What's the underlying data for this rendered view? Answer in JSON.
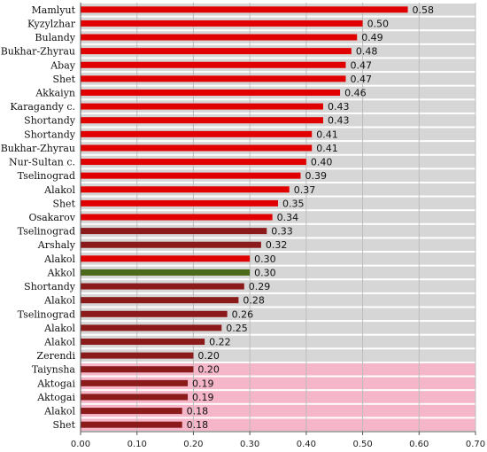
{
  "colors": {
    "background": "#ffffff",
    "band_gray": "#d6d6d6",
    "band_pink": "#f4b6c8",
    "bar_red": "#e00000",
    "bar_brown": "#8b1a1a",
    "bar_olive": "#4a6a1a",
    "grid": "#bdbdbd",
    "axis": "#555555",
    "text": "#111111"
  },
  "chart_data": {
    "type": "bar",
    "orientation": "horizontal",
    "categories": [
      "Mamlyut",
      "Kyzylzhar",
      "Bulandy",
      "Bukhar-Zhyrau",
      "Abay",
      "Shet",
      "Akkaiyn",
      "Karagandy c.",
      "Shortandy",
      "Shortandy",
      "Bukhar-Zhyrau",
      "Nur-Sultan c.",
      "Tselinograd",
      "Alakol",
      "Shet",
      "Osakarov",
      "Tselinograd",
      "Arshaly",
      "Alakol",
      "Akkol",
      "Shortandy",
      "Alakol",
      "Tselinograd",
      "Alakol",
      "Alakol",
      "Zerendi",
      "Taiynsha",
      "Aktogai",
      "Aktogai",
      "Alakol",
      "Shet"
    ],
    "values": [
      0.58,
      0.5,
      0.49,
      0.48,
      0.47,
      0.47,
      0.46,
      0.43,
      0.43,
      0.41,
      0.41,
      0.4,
      0.39,
      0.37,
      0.35,
      0.34,
      0.33,
      0.32,
      0.3,
      0.3,
      0.29,
      0.28,
      0.26,
      0.25,
      0.22,
      0.2,
      0.2,
      0.19,
      0.19,
      0.18,
      0.18
    ],
    "value_labels": [
      "0.58",
      "0.50",
      "0.49",
      "0.48",
      "0.47",
      "0.47",
      "0.46",
      "0.43",
      "0.43",
      "0.41",
      "0.41",
      "0.40",
      "0.39",
      "0.37",
      "0.35",
      "0.34",
      "0.33",
      "0.32",
      "0.30",
      "0.30",
      "0.29",
      "0.28",
      "0.26",
      "0.25",
      "0.22",
      "0.20",
      "0.20",
      "0.19",
      "0.19",
      "0.18",
      "0.18"
    ],
    "bar_color_keys": [
      "bar_red",
      "bar_red",
      "bar_red",
      "bar_red",
      "bar_red",
      "bar_red",
      "bar_red",
      "bar_red",
      "bar_red",
      "bar_red",
      "bar_red",
      "bar_red",
      "bar_red",
      "bar_red",
      "bar_red",
      "bar_red",
      "bar_brown",
      "bar_brown",
      "bar_red",
      "bar_olive",
      "bar_brown",
      "bar_brown",
      "bar_brown",
      "bar_brown",
      "bar_brown",
      "bar_brown",
      "bar_brown",
      "bar_brown",
      "bar_brown",
      "bar_brown",
      "bar_brown"
    ],
    "band_color_keys": [
      "band_gray",
      "band_gray",
      "band_gray",
      "band_gray",
      "band_gray",
      "band_gray",
      "band_gray",
      "band_gray",
      "band_gray",
      "band_gray",
      "band_gray",
      "band_gray",
      "band_gray",
      "band_gray",
      "band_gray",
      "band_gray",
      "band_gray",
      "band_gray",
      "band_gray",
      "band_gray",
      "band_gray",
      "band_gray",
      "band_gray",
      "band_gray",
      "band_gray",
      "band_gray",
      "band_pink",
      "band_pink",
      "band_pink",
      "band_pink",
      "band_pink"
    ],
    "xlim": [
      0,
      0.7
    ],
    "xticks": [
      0,
      0.1,
      0.2,
      0.3,
      0.4,
      0.5,
      0.6,
      0.7
    ],
    "xtick_labels": [
      "0.00",
      "0.10",
      "0.20",
      "0.30",
      "0.40",
      "0.50",
      "0.60",
      "0.70"
    ],
    "grid": "vertical",
    "title": "",
    "xlabel": "",
    "ylabel": ""
  }
}
